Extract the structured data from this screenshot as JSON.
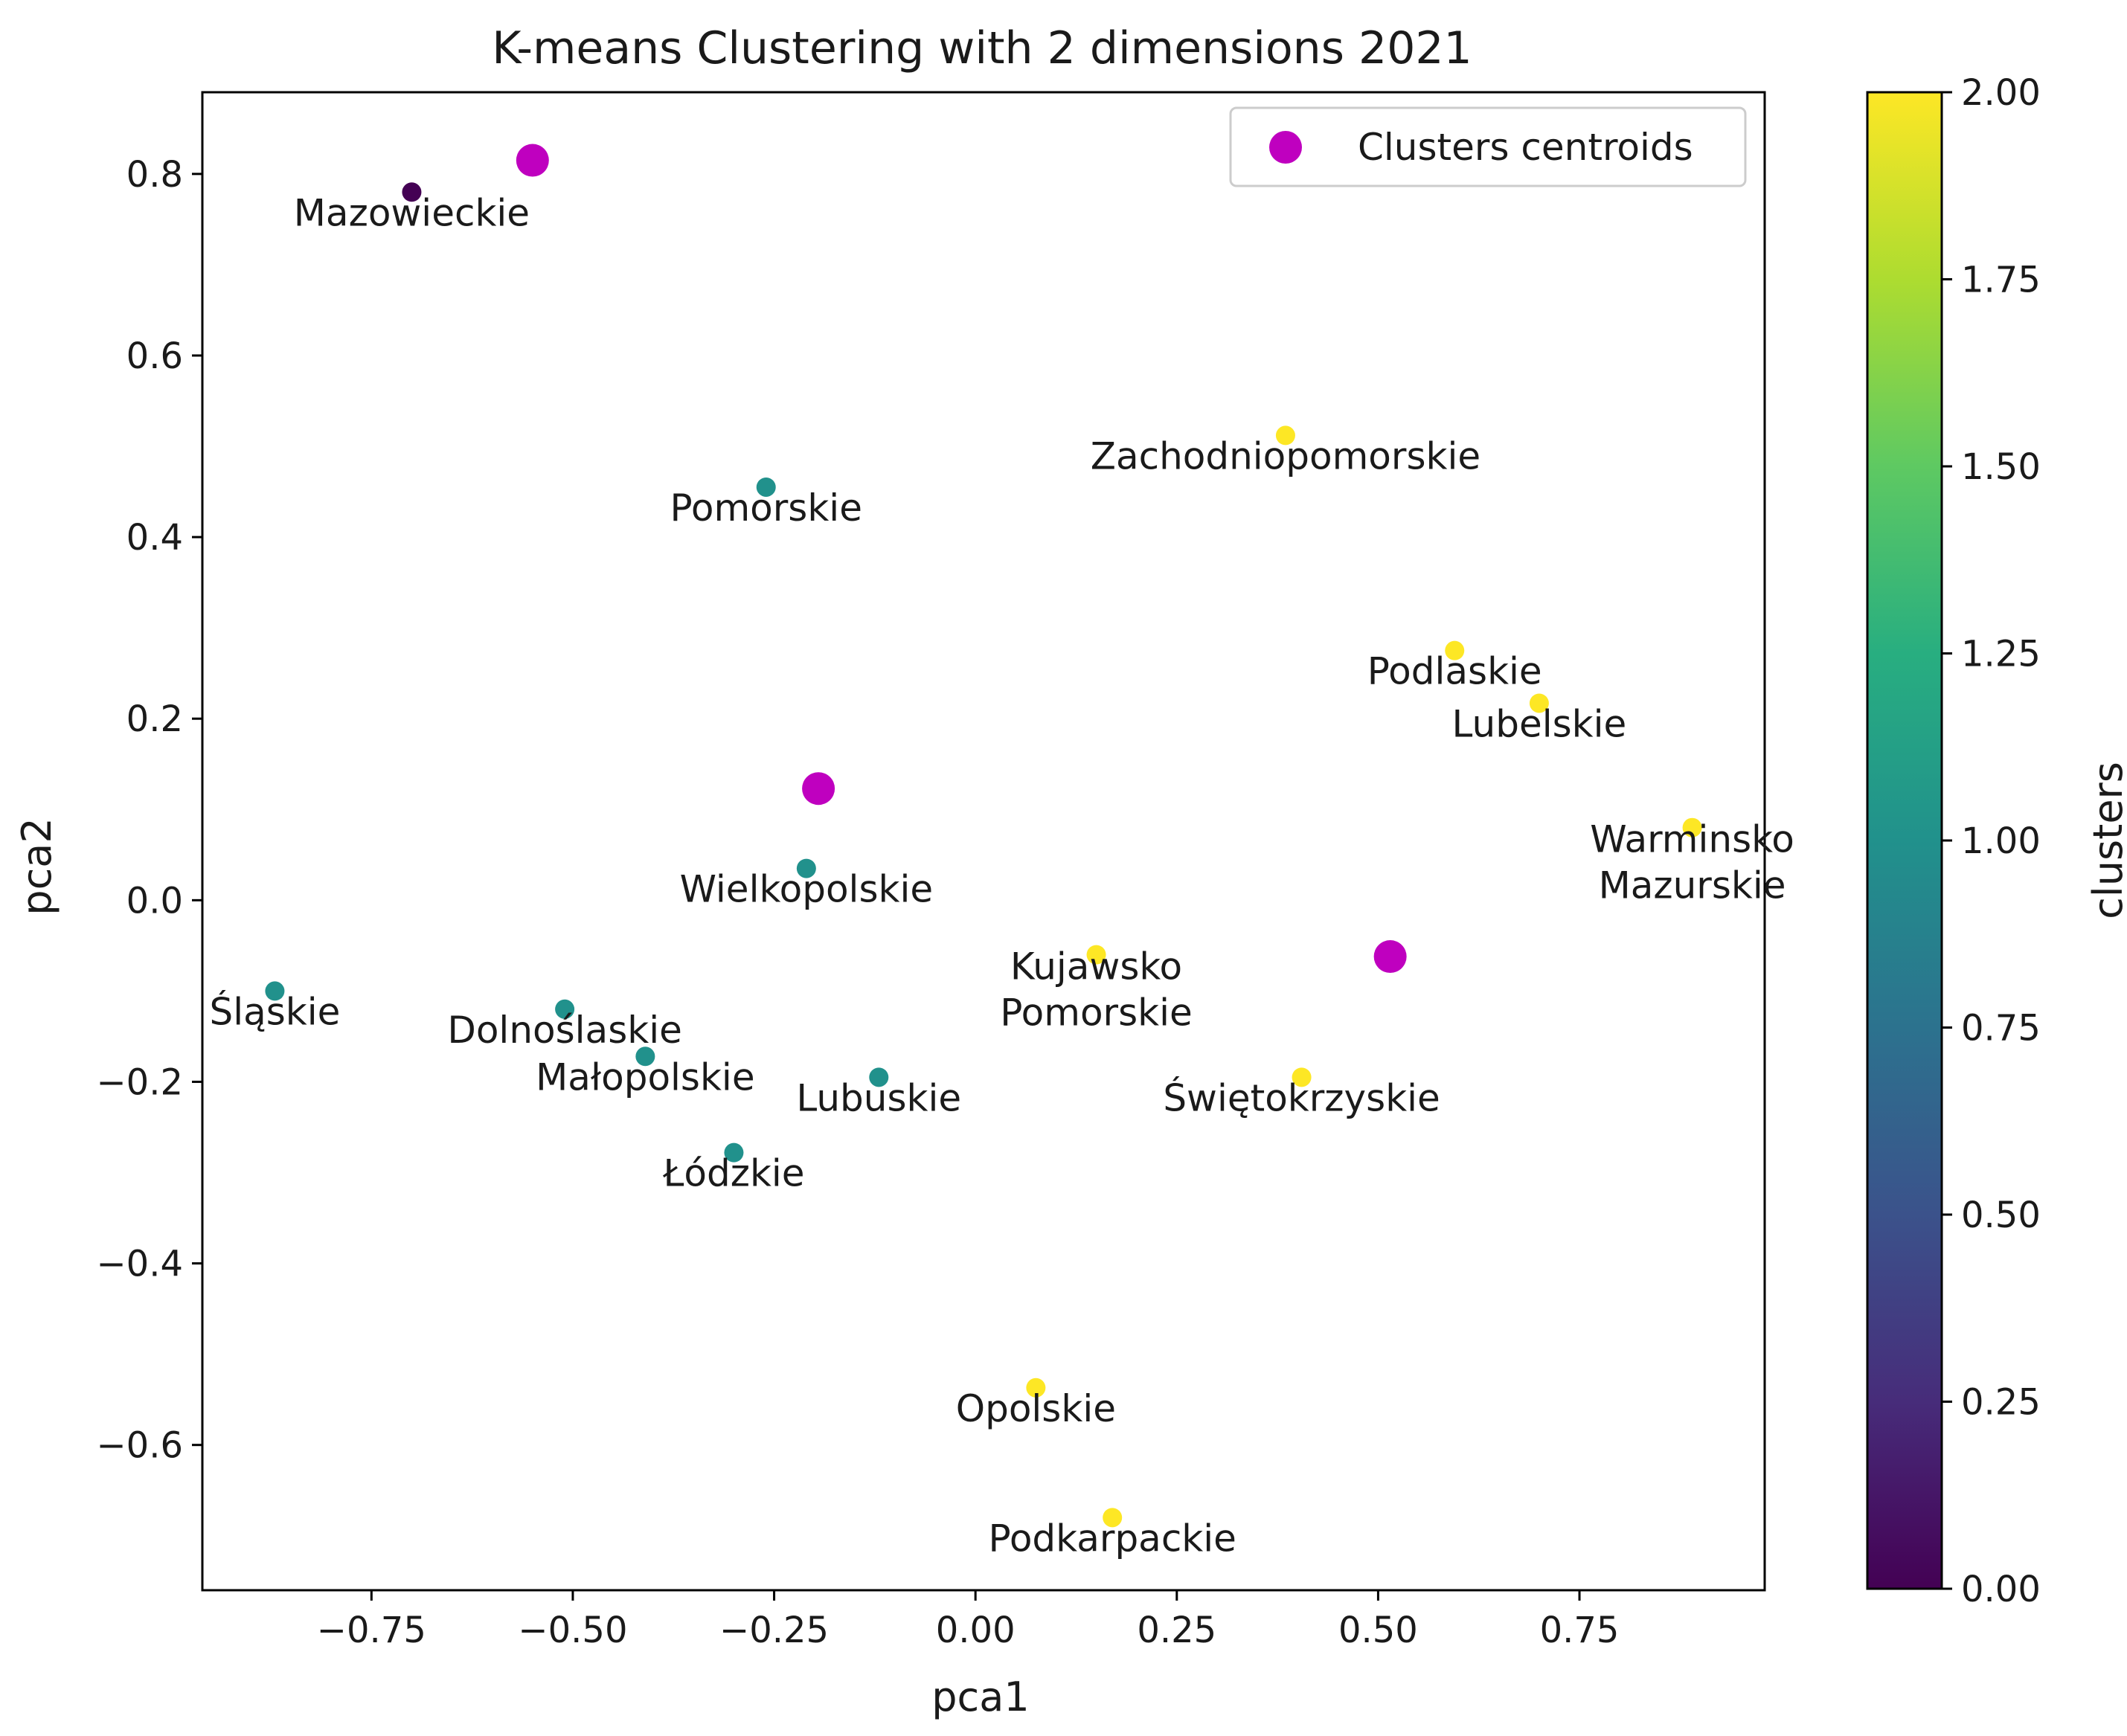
{
  "chart_data": {
    "type": "scatter",
    "title": "K-means Clustering with 2 dimensions 2021",
    "xlabel": "pca1",
    "ylabel": "pca2",
    "xlim": [
      -0.96,
      0.98
    ],
    "ylim": [
      -0.76,
      0.89
    ],
    "xticks": [
      -0.75,
      -0.5,
      -0.25,
      0.0,
      0.25,
      0.5,
      0.75
    ],
    "xtick_labels": [
      "−0.75",
      "−0.50",
      "−0.25",
      "0.00",
      "0.25",
      "0.50",
      "0.75"
    ],
    "yticks": [
      -0.6,
      -0.4,
      -0.2,
      0.0,
      0.2,
      0.4,
      0.6,
      0.8
    ],
    "ytick_labels": [
      "−0.6",
      "−0.4",
      "−0.2",
      "0.0",
      "0.2",
      "0.4",
      "0.6",
      "0.8"
    ],
    "points": [
      {
        "name": "Mazowieckie",
        "x": -0.7,
        "y": 0.78,
        "cluster": 0,
        "label_lines": [
          "Mazowieckie"
        ]
      },
      {
        "name": "Pomorskie",
        "x": -0.26,
        "y": 0.455,
        "cluster": 1,
        "label_lines": [
          "Pomorskie"
        ]
      },
      {
        "name": "Wielkopolskie",
        "x": -0.21,
        "y": 0.035,
        "cluster": 1,
        "label_lines": [
          "Wielkopolskie"
        ]
      },
      {
        "name": "Śląskie",
        "x": -0.87,
        "y": -0.1,
        "cluster": 1,
        "label_lines": [
          "Śląskie"
        ]
      },
      {
        "name": "Dolnoślaskie",
        "x": -0.51,
        "y": -0.12,
        "cluster": 1,
        "label_lines": [
          "Dolnoślaskie"
        ]
      },
      {
        "name": "Małopolskie",
        "x": -0.41,
        "y": -0.172,
        "cluster": 1,
        "label_lines": [
          "Małopolskie"
        ]
      },
      {
        "name": "Lubuskie",
        "x": -0.12,
        "y": -0.195,
        "cluster": 1,
        "label_lines": [
          "Lubuskie"
        ]
      },
      {
        "name": "Łódzkie",
        "x": -0.3,
        "y": -0.278,
        "cluster": 1,
        "label_lines": [
          "Łódzkie"
        ]
      },
      {
        "name": "Zachodniopomorskie",
        "x": 0.385,
        "y": 0.512,
        "cluster": 2,
        "label_lines": [
          "Zachodniopomorskie"
        ]
      },
      {
        "name": "Podlaskie",
        "x": 0.595,
        "y": 0.275,
        "cluster": 2,
        "label_lines": [
          "Podlaskie"
        ]
      },
      {
        "name": "Lubelskie",
        "x": 0.7,
        "y": 0.217,
        "cluster": 2,
        "label_lines": [
          "Lubelskie"
        ]
      },
      {
        "name": "Warminsko Mazurskie",
        "x": 0.89,
        "y": 0.08,
        "cluster": 2,
        "label_lines": [
          "Warminsko",
          "Mazurskie"
        ]
      },
      {
        "name": "Kujawsko Pomorskie",
        "x": 0.15,
        "y": -0.06,
        "cluster": 2,
        "label_lines": [
          "Kujawsko",
          "Pomorskie"
        ]
      },
      {
        "name": "Świętokrzyskie",
        "x": 0.405,
        "y": -0.195,
        "cluster": 2,
        "label_lines": [
          "Świętokrzyskie"
        ]
      },
      {
        "name": "Opolskie",
        "x": 0.075,
        "y": -0.537,
        "cluster": 2,
        "label_lines": [
          "Opolskie"
        ]
      },
      {
        "name": "Podkarpackie",
        "x": 0.17,
        "y": -0.68,
        "cluster": 2,
        "label_lines": [
          "Podkarpackie"
        ]
      }
    ],
    "centroids": [
      {
        "x": -0.55,
        "y": 0.815
      },
      {
        "x": -0.195,
        "y": 0.123
      },
      {
        "x": 0.515,
        "y": -0.062
      }
    ],
    "legend": {
      "label": "Clusters centroids",
      "position": "upper right"
    },
    "colorbar": {
      "label": "clusters",
      "range": [
        0.0,
        2.0
      ],
      "ticks": [
        0.0,
        0.25,
        0.5,
        0.75,
        1.0,
        1.25,
        1.5,
        1.75,
        2.0
      ],
      "tick_labels": [
        "0.00",
        "0.25",
        "0.50",
        "0.75",
        "1.00",
        "1.25",
        "1.50",
        "1.75",
        "2.00"
      ],
      "colormap": "viridis"
    },
    "colors": {
      "cluster_0": "#440154",
      "cluster_1": "#21918c",
      "cluster_2": "#fde725",
      "centroid": "#bf00bf"
    }
  }
}
